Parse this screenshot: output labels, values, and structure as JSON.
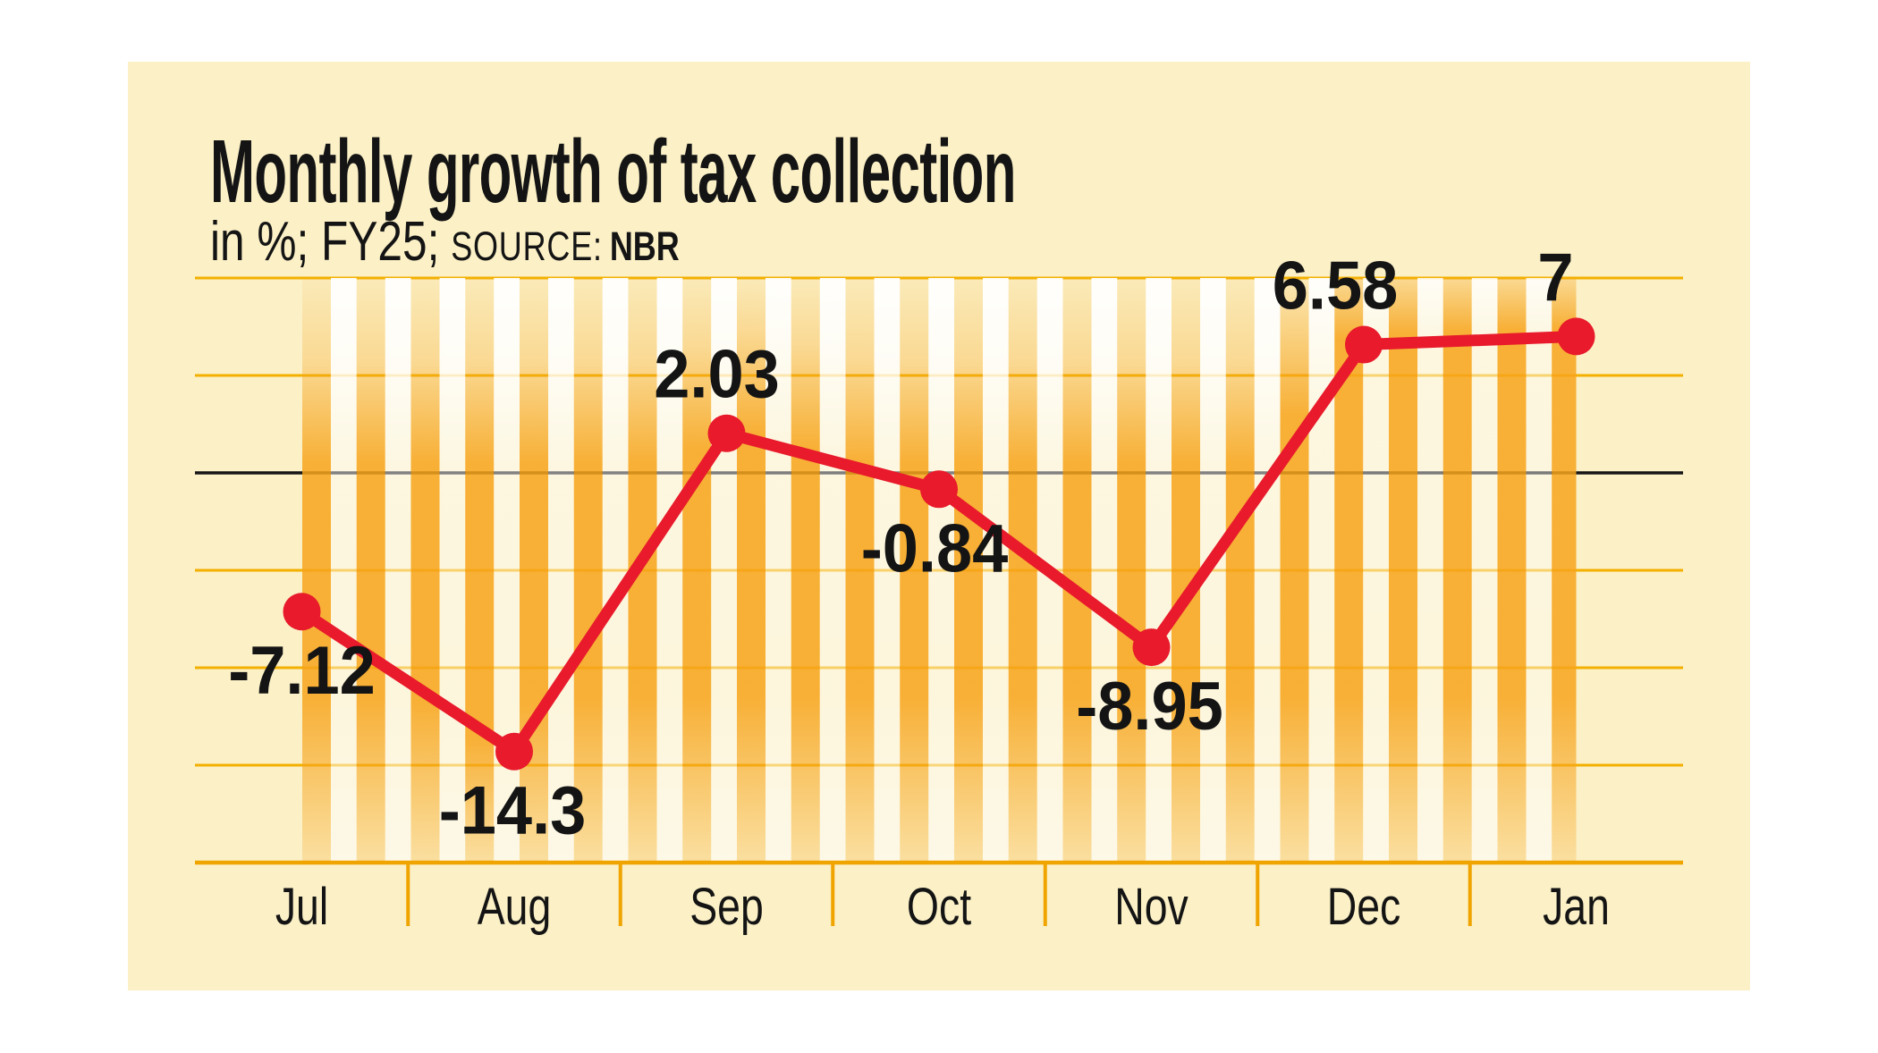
{
  "header": {
    "title": "Monthly growth of tax collection",
    "subtitle_unit": "in %; FY25;",
    "source_label": "SOURCE:",
    "source_value": "NBR"
  },
  "chart_data": {
    "type": "line",
    "title": "Monthly growth of tax collection",
    "unit": "%",
    "period": "FY25",
    "source": "NBR",
    "categories": [
      "Jul",
      "Aug",
      "Sep",
      "Oct",
      "Nov",
      "Dec",
      "Jan"
    ],
    "series": [
      {
        "name": "Monthly growth of tax collection (%)",
        "values": [
          -7.12,
          -14.3,
          2.03,
          -0.84,
          -8.95,
          6.58,
          7
        ]
      }
    ],
    "points": [
      {
        "category": "Jul",
        "value": -7.12,
        "label": "-7.12",
        "label_side": "below"
      },
      {
        "category": "Aug",
        "value": -14.3,
        "label": "-14.3",
        "label_side": "below"
      },
      {
        "category": "Sep",
        "value": 2.03,
        "label": "2.03",
        "label_side": "above"
      },
      {
        "category": "Oct",
        "value": -0.84,
        "label": "-0.84",
        "label_side": "below"
      },
      {
        "category": "Nov",
        "value": -8.95,
        "label": "-8.95",
        "label_side": "below"
      },
      {
        "category": "Dec",
        "value": 6.58,
        "label": "6.58",
        "label_side": "above"
      },
      {
        "category": "Jan",
        "value": 7,
        "label": "7",
        "label_side": "above"
      }
    ],
    "ylim": [
      -20,
      10
    ],
    "gridline_step": 5,
    "gridline_values": [
      10,
      5,
      0,
      -5,
      -10,
      -15
    ],
    "zero_line_value": 0,
    "grid": true,
    "legend": "none",
    "xlabel": "",
    "ylabel": "in %",
    "colors": {
      "page": "#FFFFFF",
      "card": "#FBF0C6",
      "gridline": "#F3B000",
      "zero_line": "#161616",
      "baseline": "#F0A400",
      "line": "#E81A2B",
      "marker": "#E81A2B",
      "fill_orange": "#F7A41C",
      "stripe_white": "#FFFFFF",
      "text": "#141414"
    }
  }
}
